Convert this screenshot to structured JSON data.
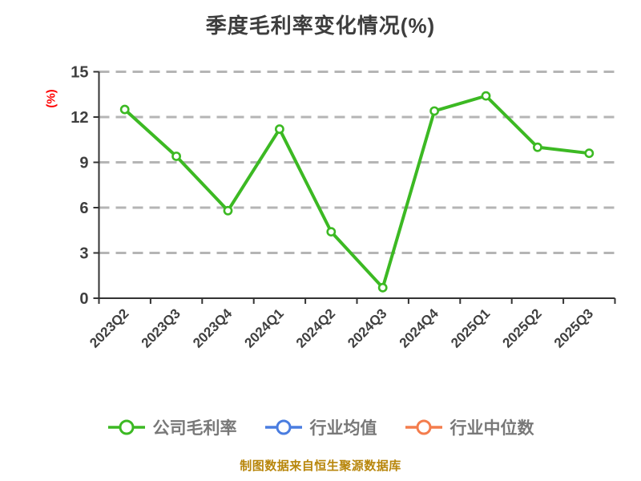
{
  "title": "季度毛利率变化情况(%)",
  "ylabel": "(%)",
  "footer_note": "制图数据来自恒生聚源数据库",
  "colors": {
    "company_series": "#3cb923",
    "industry_avg_series": "#4a7de0",
    "industry_median_series": "#f47d4d",
    "title_text": "#3d3d3d",
    "axis_line": "#333333",
    "tick_label": "#3f3f3f",
    "grid_line": "#b5b5b5",
    "legend_text": "#787878",
    "footer_text": "#b8860b",
    "ylabel_text": "#ff0000",
    "marker_fill": "#ffffff"
  },
  "legend": [
    {
      "key": "company-margin",
      "label": "公司毛利率",
      "color": "#3cb923"
    },
    {
      "key": "industry-average",
      "label": "行业均值",
      "color": "#4a7de0"
    },
    {
      "key": "industry-median",
      "label": "行业中位数",
      "color": "#f47d4d"
    }
  ],
  "chart_data": {
    "type": "line",
    "title": "季度毛利率变化情况(%)",
    "xlabel": "",
    "ylabel": "(%)",
    "categories": [
      "2023Q2",
      "2023Q3",
      "2023Q4",
      "2024Q1",
      "2024Q2",
      "2024Q3",
      "2024Q4",
      "2025Q1",
      "2025Q2",
      "2025Q3"
    ],
    "series": [
      {
        "key": "company-margin",
        "name": "公司毛利率",
        "color": "#3cb923",
        "values": [
          12.5,
          9.4,
          5.8,
          11.2,
          4.4,
          0.7,
          12.4,
          13.4,
          10.0,
          9.6
        ]
      },
      {
        "key": "industry-average",
        "name": "行业均值",
        "color": "#4a7de0",
        "values": []
      },
      {
        "key": "industry-median",
        "name": "行业中位数",
        "color": "#f47d4d",
        "values": []
      }
    ],
    "ylim": [
      0,
      15
    ],
    "yticks": [
      0,
      3,
      6,
      9,
      12,
      15
    ],
    "grid": "horizontal-dashed",
    "legend_position": "bottom",
    "source_note": "制图数据来自恒生聚源数据库"
  }
}
